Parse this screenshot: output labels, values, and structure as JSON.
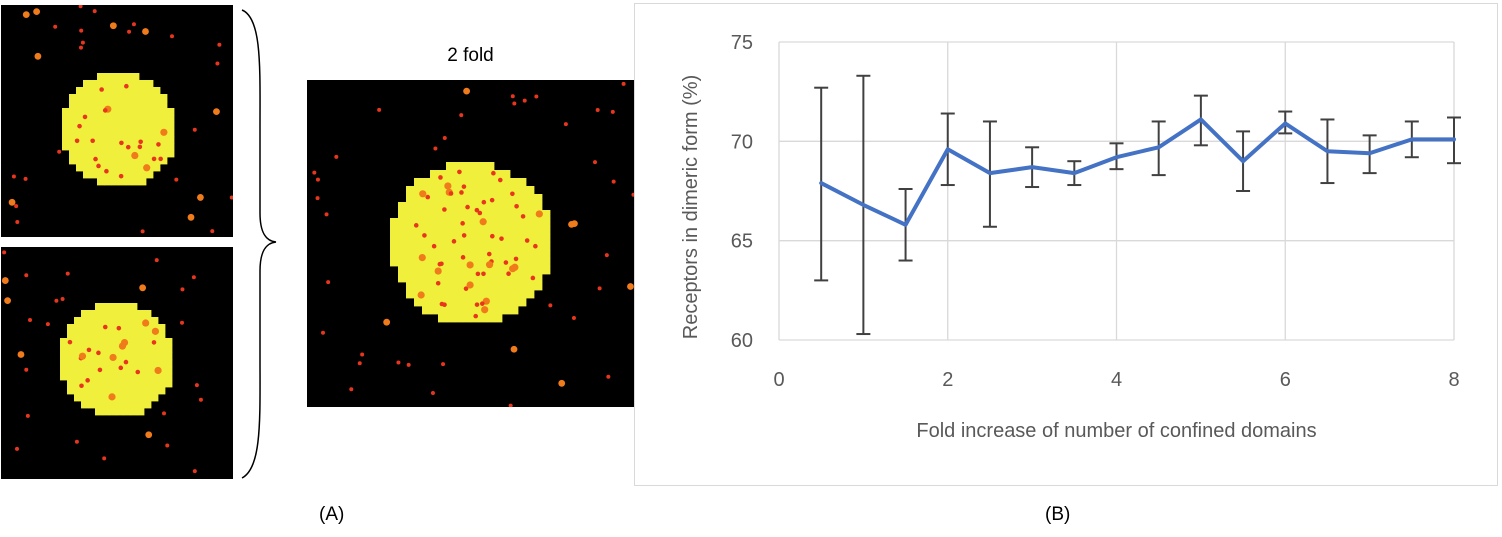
{
  "panel_a": {
    "letter": "(A)",
    "main_title": "2 fold"
  },
  "panel_b": {
    "letter": "(B)"
  },
  "colors": {
    "background": "#000000",
    "domain": "#f0f03c",
    "receptor": "#e8351e",
    "receptor_large": "#f07b1a",
    "line": "#4472c4",
    "error_bar": "#404040",
    "grid": "#d9d9d9"
  },
  "chart_data": {
    "type": "line",
    "title": "",
    "xlabel": "Fold increase of number of confined domains",
    "ylabel": "Receptors in dimeric form (%)",
    "xlim": [
      0,
      8
    ],
    "ylim": [
      60,
      75
    ],
    "x_ticks": [
      0,
      2,
      4,
      6,
      8
    ],
    "y_ticks": [
      60,
      65,
      70,
      75
    ],
    "grid": true,
    "legend": "none",
    "series": [
      {
        "x": [
          0.5,
          1,
          1.5,
          2,
          2.5,
          3,
          3.5,
          4,
          4.5,
          5,
          5.5,
          6,
          6.5,
          7,
          7.5,
          8
        ],
        "y": [
          67.9,
          66.8,
          65.8,
          69.6,
          68.4,
          68.7,
          68.4,
          69.2,
          69.7,
          71.1,
          69.0,
          70.9,
          69.5,
          69.4,
          70.1,
          70.1
        ],
        "error_low": [
          63.0,
          60.3,
          64.0,
          67.8,
          65.7,
          67.7,
          67.8,
          68.6,
          68.3,
          69.8,
          67.5,
          70.4,
          67.9,
          68.4,
          69.2,
          68.9
        ],
        "error_high": [
          72.7,
          73.3,
          67.6,
          71.4,
          71.0,
          69.7,
          69.0,
          69.9,
          71.0,
          72.3,
          70.5,
          71.5,
          71.1,
          70.3,
          71.0,
          71.2
        ]
      }
    ]
  }
}
